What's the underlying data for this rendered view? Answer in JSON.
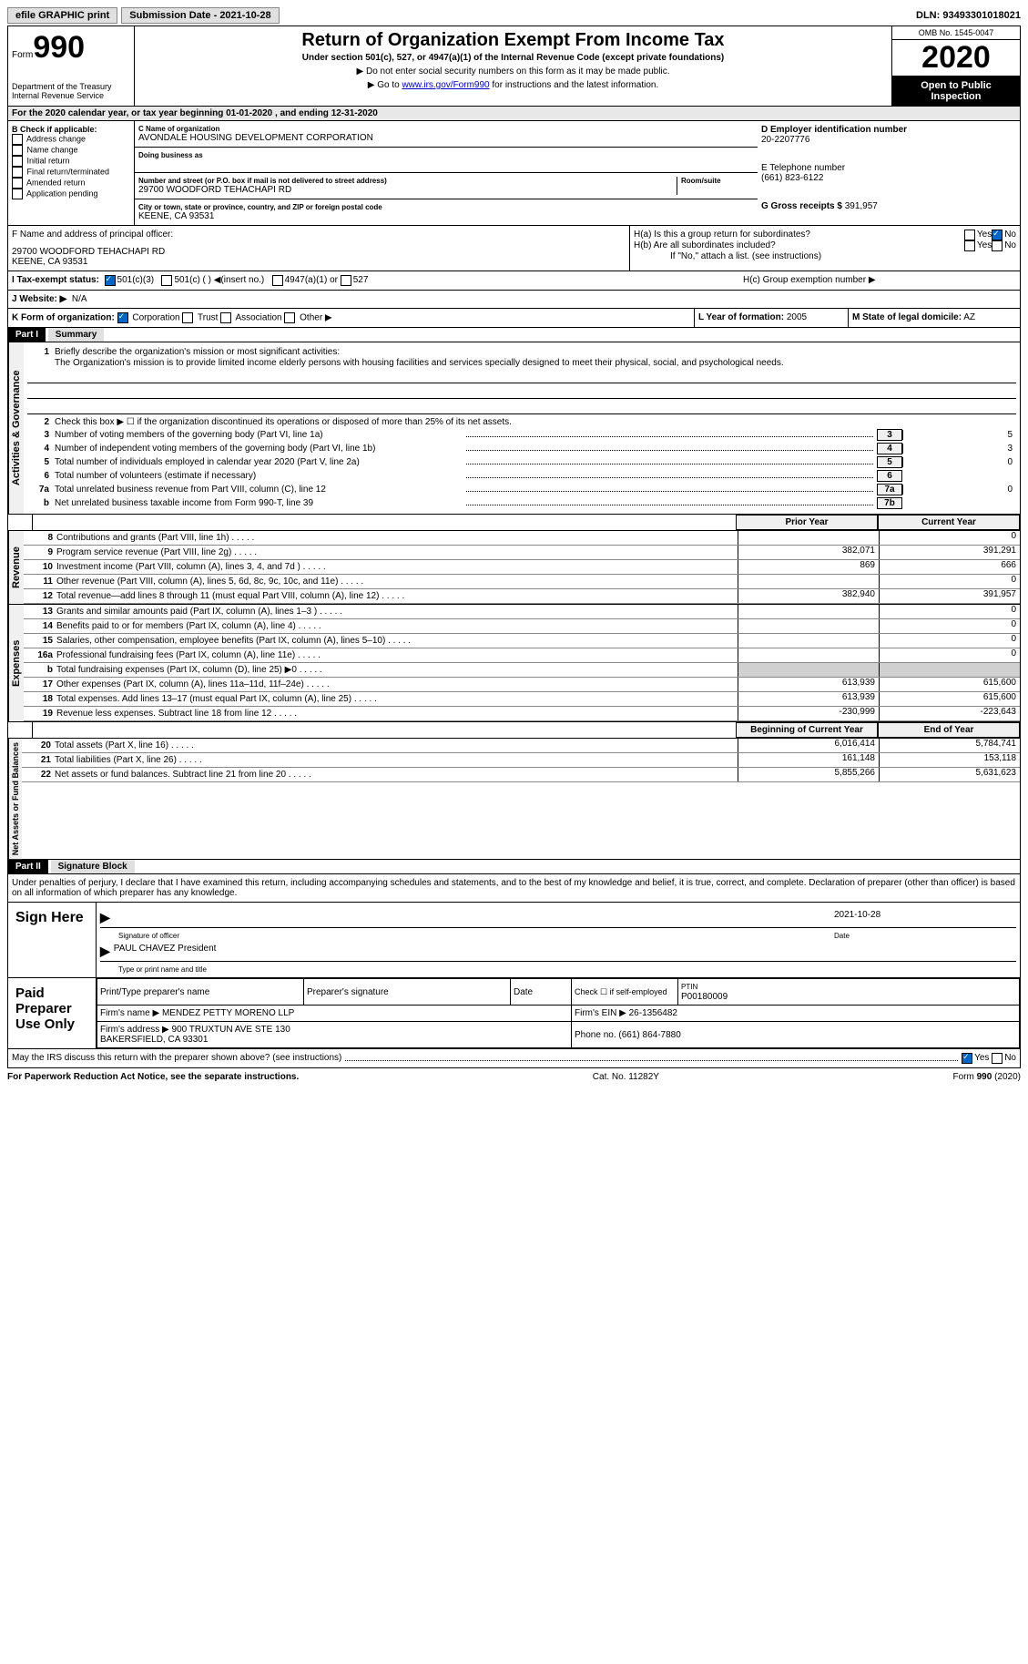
{
  "topbar": {
    "efile": "efile GRAPHIC print",
    "submission": "Submission Date - 2021-10-28",
    "dln": "DLN: 93493301018021"
  },
  "header": {
    "form_label": "Form",
    "form_number": "990",
    "dept": "Department of the Treasury\nInternal Revenue Service",
    "title": "Return of Organization Exempt From Income Tax",
    "subtitle": "Under section 501(c), 527, or 4947(a)(1) of the Internal Revenue Code (except private foundations)",
    "note1": "▶ Do not enter social security numbers on this form as it may be made public.",
    "note2_pre": "▶ Go to ",
    "note2_link": "www.irs.gov/Form990",
    "note2_post": " for instructions and the latest information.",
    "omb": "OMB No. 1545-0047",
    "year": "2020",
    "inspection": "Open to Public Inspection"
  },
  "period": "For the 2020 calendar year, or tax year beginning 01-01-2020     , and ending 12-31-2020",
  "section_b": {
    "label": "B Check if applicable:",
    "items": [
      "Address change",
      "Name change",
      "Initial return",
      "Final return/terminated",
      "Amended return",
      "Application pending"
    ]
  },
  "section_c": {
    "name_label": "C Name of organization",
    "name": "AVONDALE HOUSING DEVELOPMENT CORPORATION",
    "dba_label": "Doing business as",
    "addr_label": "Number and street (or P.O. box if mail is not delivered to street address)",
    "room_label": "Room/suite",
    "addr": "29700 WOODFORD TEHACHAPI RD",
    "city_label": "City or town, state or province, country, and ZIP or foreign postal code",
    "city": "KEENE, CA   93531"
  },
  "section_d": {
    "label": "D Employer identification number",
    "value": "20-2207776"
  },
  "section_e": {
    "label": "E Telephone number",
    "value": "(661) 823-6122"
  },
  "section_g": {
    "label": "G Gross receipts $",
    "value": "391,957"
  },
  "section_f": {
    "label": "F  Name and address of principal officer:",
    "addr1": "29700 WOODFORD TEHACHAPI RD",
    "addr2": "KEENE, CA   93531"
  },
  "section_h": {
    "ha": "H(a)  Is this a group return for subordinates?",
    "hb": "H(b)  Are all subordinates included?",
    "hb_note": "If \"No,\" attach a list. (see instructions)",
    "hc": "H(c)  Group exemption number ▶",
    "yes": "Yes",
    "no": "No"
  },
  "tax_status": {
    "label": "I    Tax-exempt status:",
    "opt1": "501(c)(3)",
    "opt2": "501(c) (  ) ◀(insert no.)",
    "opt3": "4947(a)(1) or",
    "opt4": "527"
  },
  "website": {
    "label": "J   Website: ▶",
    "value": "N/A"
  },
  "section_k": {
    "label": "K Form of organization:",
    "opts": [
      "Corporation",
      "Trust",
      "Association",
      "Other ▶"
    ]
  },
  "section_l": {
    "label": "L Year of formation:",
    "value": "2005"
  },
  "section_m": {
    "label": "M State of legal domicile:",
    "value": "AZ"
  },
  "part1": {
    "label": "Part I",
    "title": "Summary"
  },
  "governance": {
    "vlabel": "Activities & Governance",
    "l1": "Briefly describe the organization's mission or most significant activities:",
    "mission": "The Organization's mission is to provide limited income elderly persons with housing facilities and services specially designed to meet their physical, social, and psychological needs.",
    "l2": "Check this box ▶ ☐  if the organization discontinued its operations or disposed of more than 25% of its net assets.",
    "l3": "Number of voting members of the governing body (Part VI, line 1a)",
    "l4": "Number of independent voting members of the governing body (Part VI, line 1b)",
    "l5": "Total number of individuals employed in calendar year 2020 (Part V, line 2a)",
    "l6": "Total number of volunteers (estimate if necessary)",
    "l7a": "Total unrelated business revenue from Part VIII, column (C), line 12",
    "l7b": "Net unrelated business taxable income from Form 990-T, line 39",
    "v3": "5",
    "v4": "3",
    "v5": "0",
    "v6": "",
    "v7a": "0",
    "v7b": ""
  },
  "col_hdrs": {
    "prior": "Prior Year",
    "current": "Current Year"
  },
  "revenue": {
    "vlabel": "Revenue",
    "rows": [
      {
        "n": "8",
        "t": "Contributions and grants (Part VIII, line 1h)",
        "p": "",
        "c": "0"
      },
      {
        "n": "9",
        "t": "Program service revenue (Part VIII, line 2g)",
        "p": "382,071",
        "c": "391,291"
      },
      {
        "n": "10",
        "t": "Investment income (Part VIII, column (A), lines 3, 4, and 7d )",
        "p": "869",
        "c": "666"
      },
      {
        "n": "11",
        "t": "Other revenue (Part VIII, column (A), lines 5, 6d, 8c, 9c, 10c, and 11e)",
        "p": "",
        "c": "0"
      },
      {
        "n": "12",
        "t": "Total revenue—add lines 8 through 11 (must equal Part VIII, column (A), line 12)",
        "p": "382,940",
        "c": "391,957"
      }
    ]
  },
  "expenses": {
    "vlabel": "Expenses",
    "rows": [
      {
        "n": "13",
        "t": "Grants and similar amounts paid (Part IX, column (A), lines 1–3 )",
        "p": "",
        "c": "0"
      },
      {
        "n": "14",
        "t": "Benefits paid to or for members (Part IX, column (A), line 4)",
        "p": "",
        "c": "0"
      },
      {
        "n": "15",
        "t": "Salaries, other compensation, employee benefits (Part IX, column (A), lines 5–10)",
        "p": "",
        "c": "0"
      },
      {
        "n": "16a",
        "t": "Professional fundraising fees (Part IX, column (A), line 11e)",
        "p": "",
        "c": "0"
      },
      {
        "n": "b",
        "t": "Total fundraising expenses (Part IX, column (D), line 25) ▶0",
        "p": "shaded",
        "c": "shaded"
      },
      {
        "n": "17",
        "t": "Other expenses (Part IX, column (A), lines 11a–11d, 11f–24e)",
        "p": "613,939",
        "c": "615,600"
      },
      {
        "n": "18",
        "t": "Total expenses. Add lines 13–17 (must equal Part IX, column (A), line 25)",
        "p": "613,939",
        "c": "615,600"
      },
      {
        "n": "19",
        "t": "Revenue less expenses. Subtract line 18 from line 12",
        "p": "-230,999",
        "c": "-223,643"
      }
    ]
  },
  "netassets": {
    "vlabel": "Net Assets or Fund Balances",
    "hdr_begin": "Beginning of Current Year",
    "hdr_end": "End of Year",
    "rows": [
      {
        "n": "20",
        "t": "Total assets (Part X, line 16)",
        "p": "6,016,414",
        "c": "5,784,741"
      },
      {
        "n": "21",
        "t": "Total liabilities (Part X, line 26)",
        "p": "161,148",
        "c": "153,118"
      },
      {
        "n": "22",
        "t": "Net assets or fund balances. Subtract line 21 from line 20",
        "p": "5,855,266",
        "c": "5,631,623"
      }
    ]
  },
  "part2": {
    "label": "Part II",
    "title": "Signature Block"
  },
  "penalties": "Under penalties of perjury, I declare that I have examined this return, including accompanying schedules and statements, and to the best of my knowledge and belief, it is true, correct, and complete. Declaration of preparer (other than officer) is based on all information of which preparer has any knowledge.",
  "sign": {
    "label": "Sign Here",
    "date": "2021-10-28",
    "sig_label": "Signature of officer",
    "date_label": "Date",
    "name": "PAUL CHAVEZ President",
    "name_label": "Type or print name and title"
  },
  "preparer": {
    "label": "Paid Preparer Use Only",
    "h1": "Print/Type preparer's name",
    "h2": "Preparer's signature",
    "h3": "Date",
    "h4": "Check ☐ if self-employed",
    "h5": "PTIN",
    "ptin": "P00180009",
    "firm_label": "Firm's name    ▶",
    "firm": "MENDEZ PETTY MORENO LLP",
    "ein_label": "Firm's EIN ▶",
    "ein": "26-1356482",
    "addr_label": "Firm's address ▶",
    "addr": "900 TRUXTUN AVE STE 130\nBAKERSFIELD, CA   93301",
    "phone_label": "Phone no.",
    "phone": "(661) 864-7880"
  },
  "discuss": "May the IRS discuss this return with the preparer shown above? (see instructions)",
  "footer": {
    "left": "For Paperwork Reduction Act Notice, see the separate instructions.",
    "mid": "Cat. No. 11282Y",
    "right": "Form 990 (2020)"
  }
}
